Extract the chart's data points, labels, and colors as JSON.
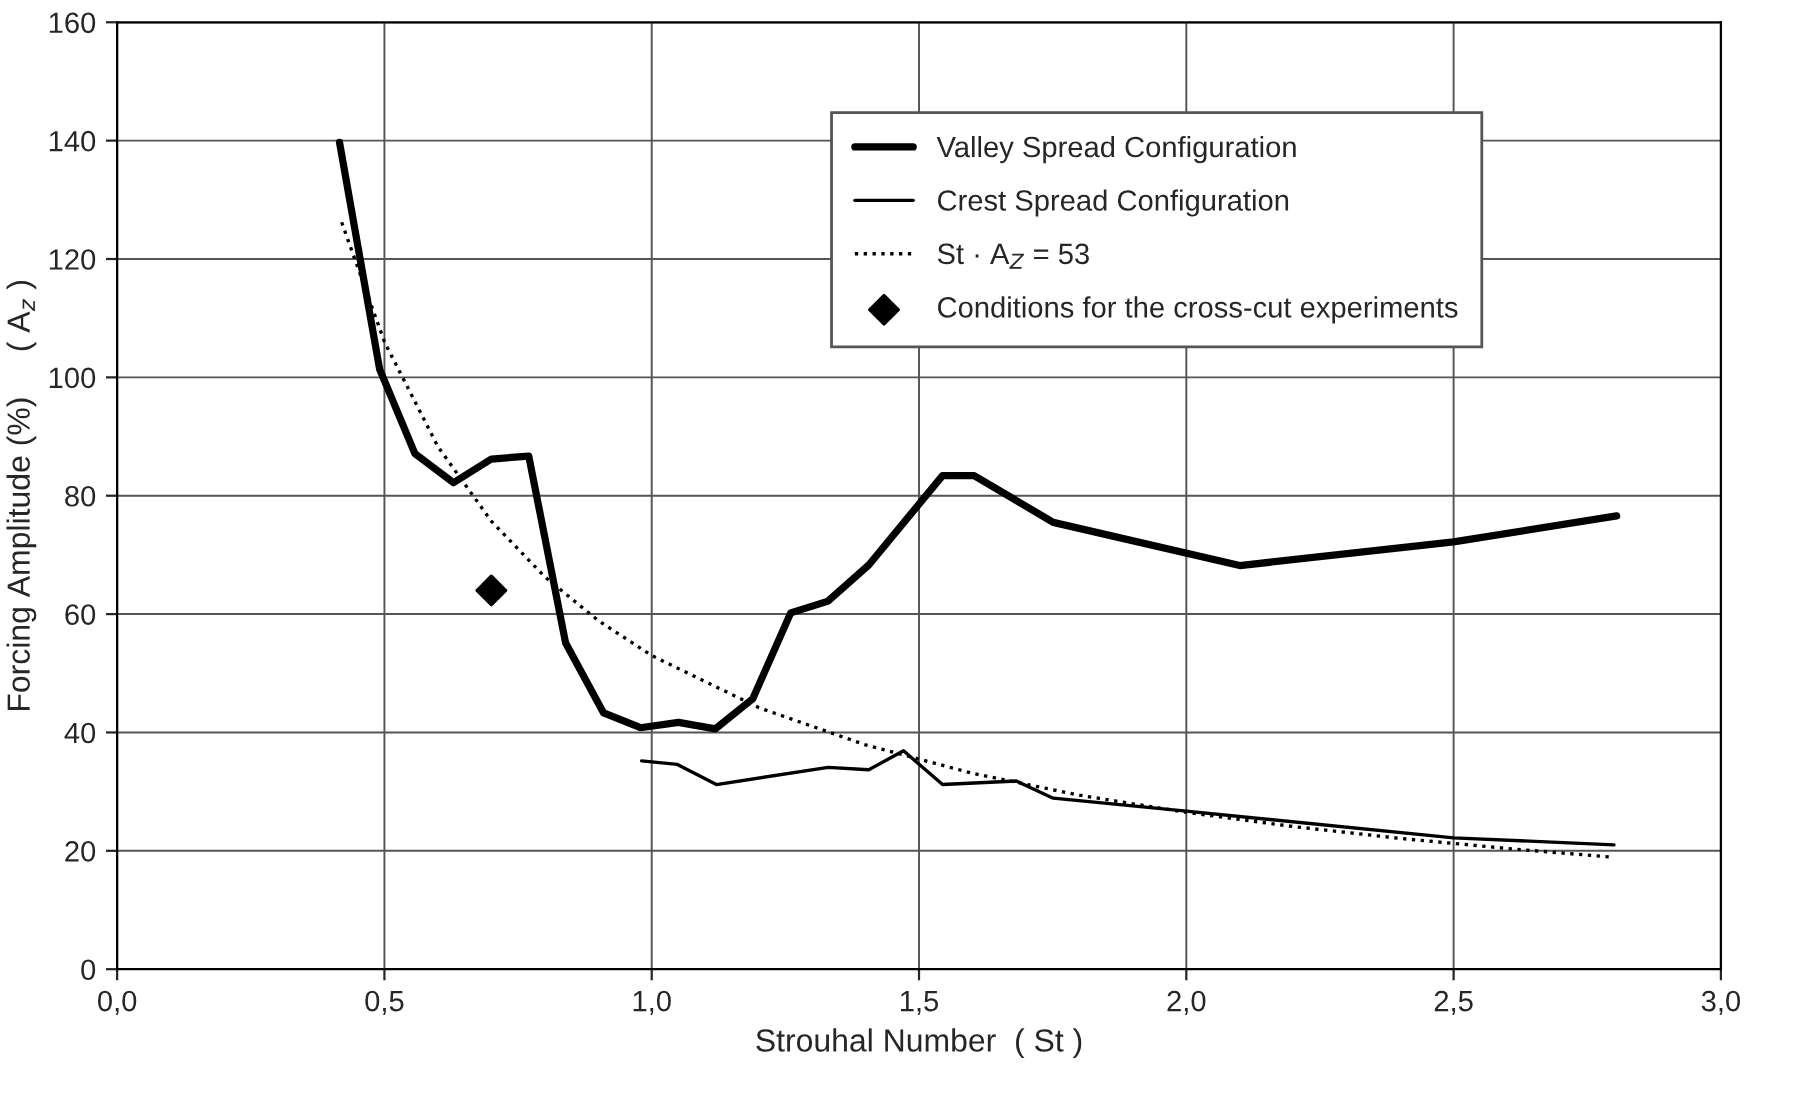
{
  "chart_data": {
    "type": "line",
    "xlabel": "Strouhal Number  ( St )",
    "ylabel": "Forcing Amplitude (%)     ( A$_{z}$ )",
    "xlim": [
      0,
      3
    ],
    "ylim": [
      0,
      160
    ],
    "xticks": [
      {
        "value": 0,
        "label": "0,0"
      },
      {
        "value": 0.5,
        "label": "0,5"
      },
      {
        "value": 1,
        "label": "1,0"
      },
      {
        "value": 1.5,
        "label": "1,5"
      },
      {
        "value": 2,
        "label": "2,0"
      },
      {
        "value": 2.5,
        "label": "2,5"
      },
      {
        "value": 3,
        "label": "3,0"
      }
    ],
    "yticks": [
      0,
      20,
      40,
      60,
      80,
      100,
      120,
      140,
      160
    ],
    "grid": true,
    "legend": "top right",
    "marker": "none",
    "series": [
      {
        "name": "Valley Spread Configuration",
        "color": "#000000",
        "line_style": "solid",
        "x": [
          0.416,
          0.491,
          0.557,
          0.629,
          0.7,
          0.77,
          0.839,
          0.91,
          0.979,
          1.05,
          1.119,
          1.189,
          1.26,
          1.33,
          1.406,
          1.544,
          1.603,
          1.751,
          2.1,
          2.5,
          2.805
        ],
        "values": [
          139.7,
          101.4,
          87.1,
          82.2,
          86.2,
          86.7,
          55.1,
          43.3,
          40.8,
          41.7,
          40.6,
          45.7,
          60.2,
          62.2,
          68.3,
          83.4,
          83.4,
          75.5,
          68.2,
          72.2,
          76.6
        ]
      },
      {
        "name": "Crest Spread Configuration",
        "color": "#000000",
        "line_style": "solid",
        "x": [
          0.981,
          1.048,
          1.121,
          1.33,
          1.406,
          1.471,
          1.544,
          1.682,
          1.751,
          2.0,
          2.5,
          2.8
        ],
        "values": [
          35.2,
          34.6,
          31.2,
          34.1,
          33.7,
          36.9,
          31.2,
          31.8,
          28.9,
          26.7,
          22.2,
          21.0
        ]
      },
      {
        "name": "St · A$_{Z}$ = 53",
        "color": "#000000",
        "line_style": "dotted",
        "x": [
          0.42,
          0.5,
          0.6,
          0.7,
          0.8,
          0.9,
          1.0,
          1.2,
          1.4,
          1.6,
          1.8,
          2.0,
          2.2,
          2.4,
          2.6,
          2.8
        ],
        "values": [
          126.2,
          106.0,
          88.3,
          75.7,
          66.3,
          58.9,
          53.0,
          44.2,
          37.9,
          33.1,
          29.4,
          26.5,
          24.1,
          22.1,
          20.4,
          18.9
        ]
      },
      {
        "name": "Conditions for the cross-cut experiments",
        "type": "scatter",
        "marker": "diamond",
        "color": "#000000",
        "x": [
          0.7
        ],
        "values": [
          64.0
        ]
      }
    ]
  }
}
